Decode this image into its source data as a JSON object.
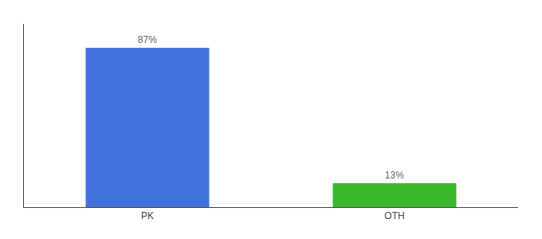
{
  "chart_data": {
    "type": "bar",
    "categories": [
      "PK",
      "OTH"
    ],
    "values": [
      87,
      13
    ],
    "value_labels": [
      "87%",
      "13%"
    ],
    "colors": [
      "#4472dd",
      "#3cb72c"
    ],
    "ylim": [
      0,
      100
    ],
    "data_labels": true,
    "tick_labels": "x",
    "grid": false
  }
}
